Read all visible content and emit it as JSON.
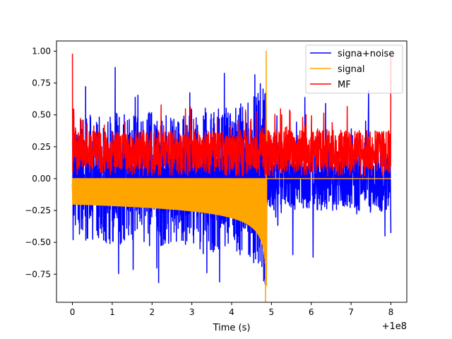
{
  "chart_data": {
    "type": "line",
    "title": "",
    "xlabel": "Time (s)",
    "ylabel": "",
    "x_offset_label": "+1e8",
    "xlim": [
      -0.4,
      8.4
    ],
    "ylim": [
      -0.97,
      1.08
    ],
    "x_ticks": [
      0,
      1,
      2,
      3,
      4,
      5,
      6,
      7,
      8
    ],
    "x_tick_labels": [
      "0",
      "1",
      "2",
      "3",
      "4",
      "5",
      "6",
      "7",
      "8"
    ],
    "y_ticks": [
      -0.75,
      -0.5,
      -0.25,
      0.0,
      0.25,
      0.5,
      0.75,
      1.0
    ],
    "y_tick_labels": [
      "−0.75",
      "−0.50",
      "−0.25",
      "0.00",
      "0.25",
      "0.50",
      "0.75",
      "1.00"
    ],
    "grid": false,
    "legend_position": "top-right",
    "series": [
      {
        "name": "signa+noise",
        "color": "#0000ff",
        "description": "chirp plus noise: upper envelope rises from about 0.2 to 0.65 near t=4.8, lower envelope falls from about -0.2 to -0.55; noise spikes reach about 0.98 and -0.87; after t=4.9 noise only between about -0.8 and 0.7"
      },
      {
        "name": "signal",
        "color": "#ffa500",
        "description": "chirp between 0 and about -0.2 growing to peak 1.0 / -0.84 at t≈4.88, zero after"
      },
      {
        "name": "MF",
        "color": "#ff0000",
        "description": "matched filter output mostly 0.05–0.5, spike of 0.98 at t=0 and at t=8"
      }
    ]
  }
}
